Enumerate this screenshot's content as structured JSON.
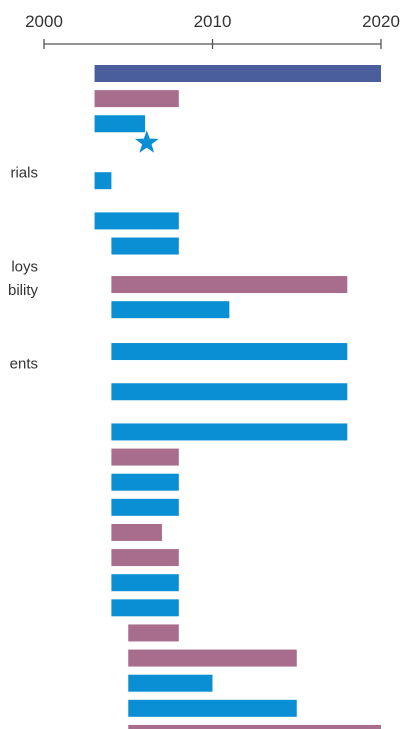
{
  "chart_data": {
    "type": "bar",
    "orientation": "horizontal-timeline",
    "title": "",
    "xlabel": "",
    "ylabel": "",
    "xlim": [
      2000,
      2020
    ],
    "ticks": [
      "2000",
      "2010",
      "2020"
    ],
    "legend": "none",
    "grid": false,
    "colors": {
      "navy": "#4a5e9e",
      "mauve": "#a86c8c",
      "blue": "#0b8fd4"
    },
    "row_labels": [
      {
        "text": "rials",
        "row": 3
      },
      {
        "text": "loys",
        "row": 5.8
      },
      {
        "text": "bility",
        "row": 6.5
      },
      {
        "text": "ents",
        "row": 8.7
      }
    ],
    "markers": [
      {
        "type": "star",
        "x": 2006.1,
        "row": 2.2,
        "color": "#0b8fd4"
      }
    ],
    "bars": [
      {
        "row": 0,
        "start": 2003,
        "end": 2020,
        "color": "#4a5e9e"
      },
      {
        "row": 0.75,
        "start": 2003,
        "end": 2008,
        "color": "#a86c8c"
      },
      {
        "row": 1.5,
        "start": 2003,
        "end": 2006,
        "color": "#0b8fd4"
      },
      {
        "row": 3.2,
        "start": 2003,
        "end": 2004,
        "color": "#0b8fd4"
      },
      {
        "row": 4.4,
        "start": 2003,
        "end": 2008,
        "color": "#0b8fd4"
      },
      {
        "row": 5.15,
        "start": 2004,
        "end": 2008,
        "color": "#0b8fd4"
      },
      {
        "row": 6.3,
        "start": 2004,
        "end": 2018,
        "color": "#a86c8c"
      },
      {
        "row": 7.05,
        "start": 2004,
        "end": 2011,
        "color": "#0b8fd4"
      },
      {
        "row": 8.3,
        "start": 2004,
        "end": 2018,
        "color": "#0b8fd4"
      },
      {
        "row": 9.5,
        "start": 2004,
        "end": 2018,
        "color": "#0b8fd4"
      },
      {
        "row": 10.7,
        "start": 2004,
        "end": 2018,
        "color": "#0b8fd4"
      },
      {
        "row": 11.45,
        "start": 2004,
        "end": 2008,
        "color": "#a86c8c"
      },
      {
        "row": 12.2,
        "start": 2004,
        "end": 2008,
        "color": "#0b8fd4"
      },
      {
        "row": 12.95,
        "start": 2004,
        "end": 2008,
        "color": "#0b8fd4"
      },
      {
        "row": 13.7,
        "start": 2004,
        "end": 2007,
        "color": "#a86c8c"
      },
      {
        "row": 14.45,
        "start": 2004,
        "end": 2008,
        "color": "#a86c8c"
      },
      {
        "row": 15.2,
        "start": 2004,
        "end": 2008,
        "color": "#0b8fd4"
      },
      {
        "row": 15.95,
        "start": 2004,
        "end": 2008,
        "color": "#0b8fd4"
      },
      {
        "row": 16.7,
        "start": 2005,
        "end": 2008,
        "color": "#a86c8c"
      },
      {
        "row": 17.45,
        "start": 2005,
        "end": 2015,
        "color": "#a86c8c"
      },
      {
        "row": 18.2,
        "start": 2005,
        "end": 2010,
        "color": "#0b8fd4"
      },
      {
        "row": 18.95,
        "start": 2005,
        "end": 2015,
        "color": "#0b8fd4"
      },
      {
        "row": 19.7,
        "start": 2005,
        "end": 2020,
        "color": "#a86c8c"
      }
    ]
  }
}
